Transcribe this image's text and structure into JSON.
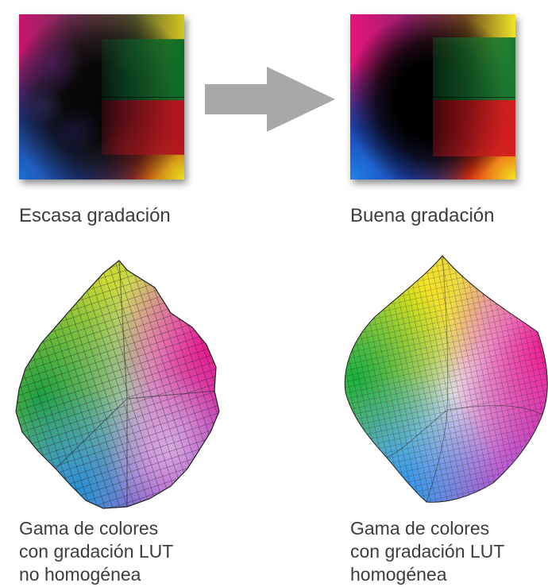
{
  "top_row": {
    "left_caption": "Escasa gradación",
    "right_caption": "Buena gradación"
  },
  "bottom_row": {
    "left_caption": [
      "Gama de colores",
      "con gradación LUT",
      "no homogénea"
    ],
    "right_caption": [
      "Gama de colores",
      "con gradación LUT",
      "homogénea"
    ]
  },
  "colors": {
    "arrow": "#a8a8a8",
    "caption_text": "#3c3c3c"
  },
  "icons": {
    "arrow": "right-arrow-icon"
  }
}
